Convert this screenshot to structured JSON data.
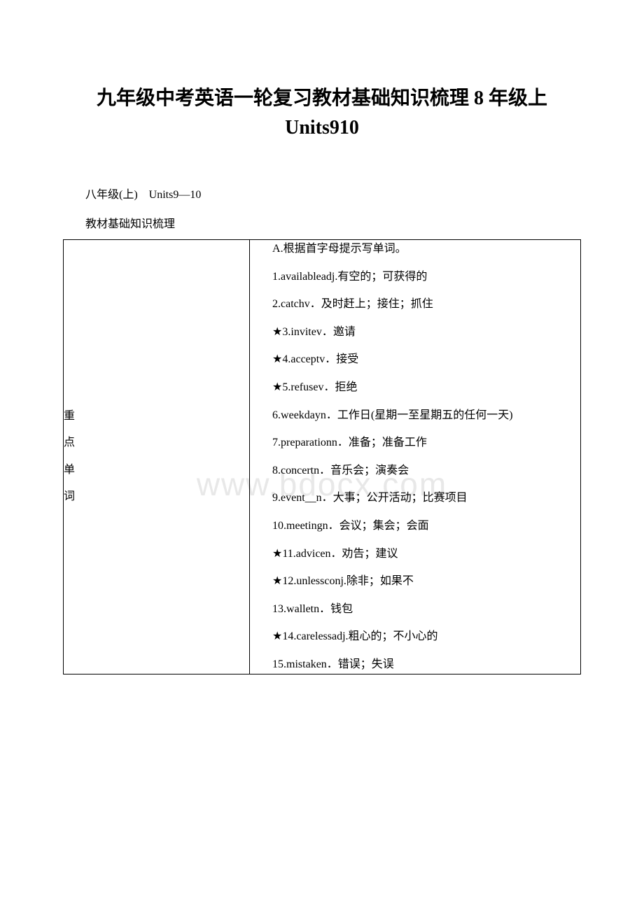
{
  "title_line1": "九年级中考英语一轮复习教材基础知识梳理 8 年级上",
  "title_line2": "Units910",
  "subtitle": "八年级(上)　Units9—10",
  "subtitle2": "教材基础知识梳理",
  "left_label": {
    "c1": "重",
    "c2": "点",
    "c3": "单",
    "c4": "词"
  },
  "section_heading": "A.根据首字母提示写单词。",
  "items": [
    "1.availableadj.有空的；可获得的",
    "2.catchv．及时赶上；接住；抓住",
    "★3.invitev．邀请",
    "★4.acceptv．接受",
    "★5.refusev．拒绝",
    "6.weekdayn．工作日(星期一至星期五的任何一天)",
    "7.preparationn．准备；准备工作",
    "8.concertn．音乐会；演奏会",
    "9.event__n．大事；公开活动；比赛项目",
    "10.meetingn．会议；集会；会面",
    "★11.advicen．劝告；建议",
    "★12.unlessconj.除非；如果不",
    "13.walletn．钱包",
    "★14.carelessadj.粗心的；不小心的",
    "15.mistaken．错误；失误"
  ],
  "watermark": "www.bdocx.com",
  "colors": {
    "text": "#000000",
    "background": "#ffffff",
    "border": "#000000",
    "watermark": "#e8e8e8"
  }
}
